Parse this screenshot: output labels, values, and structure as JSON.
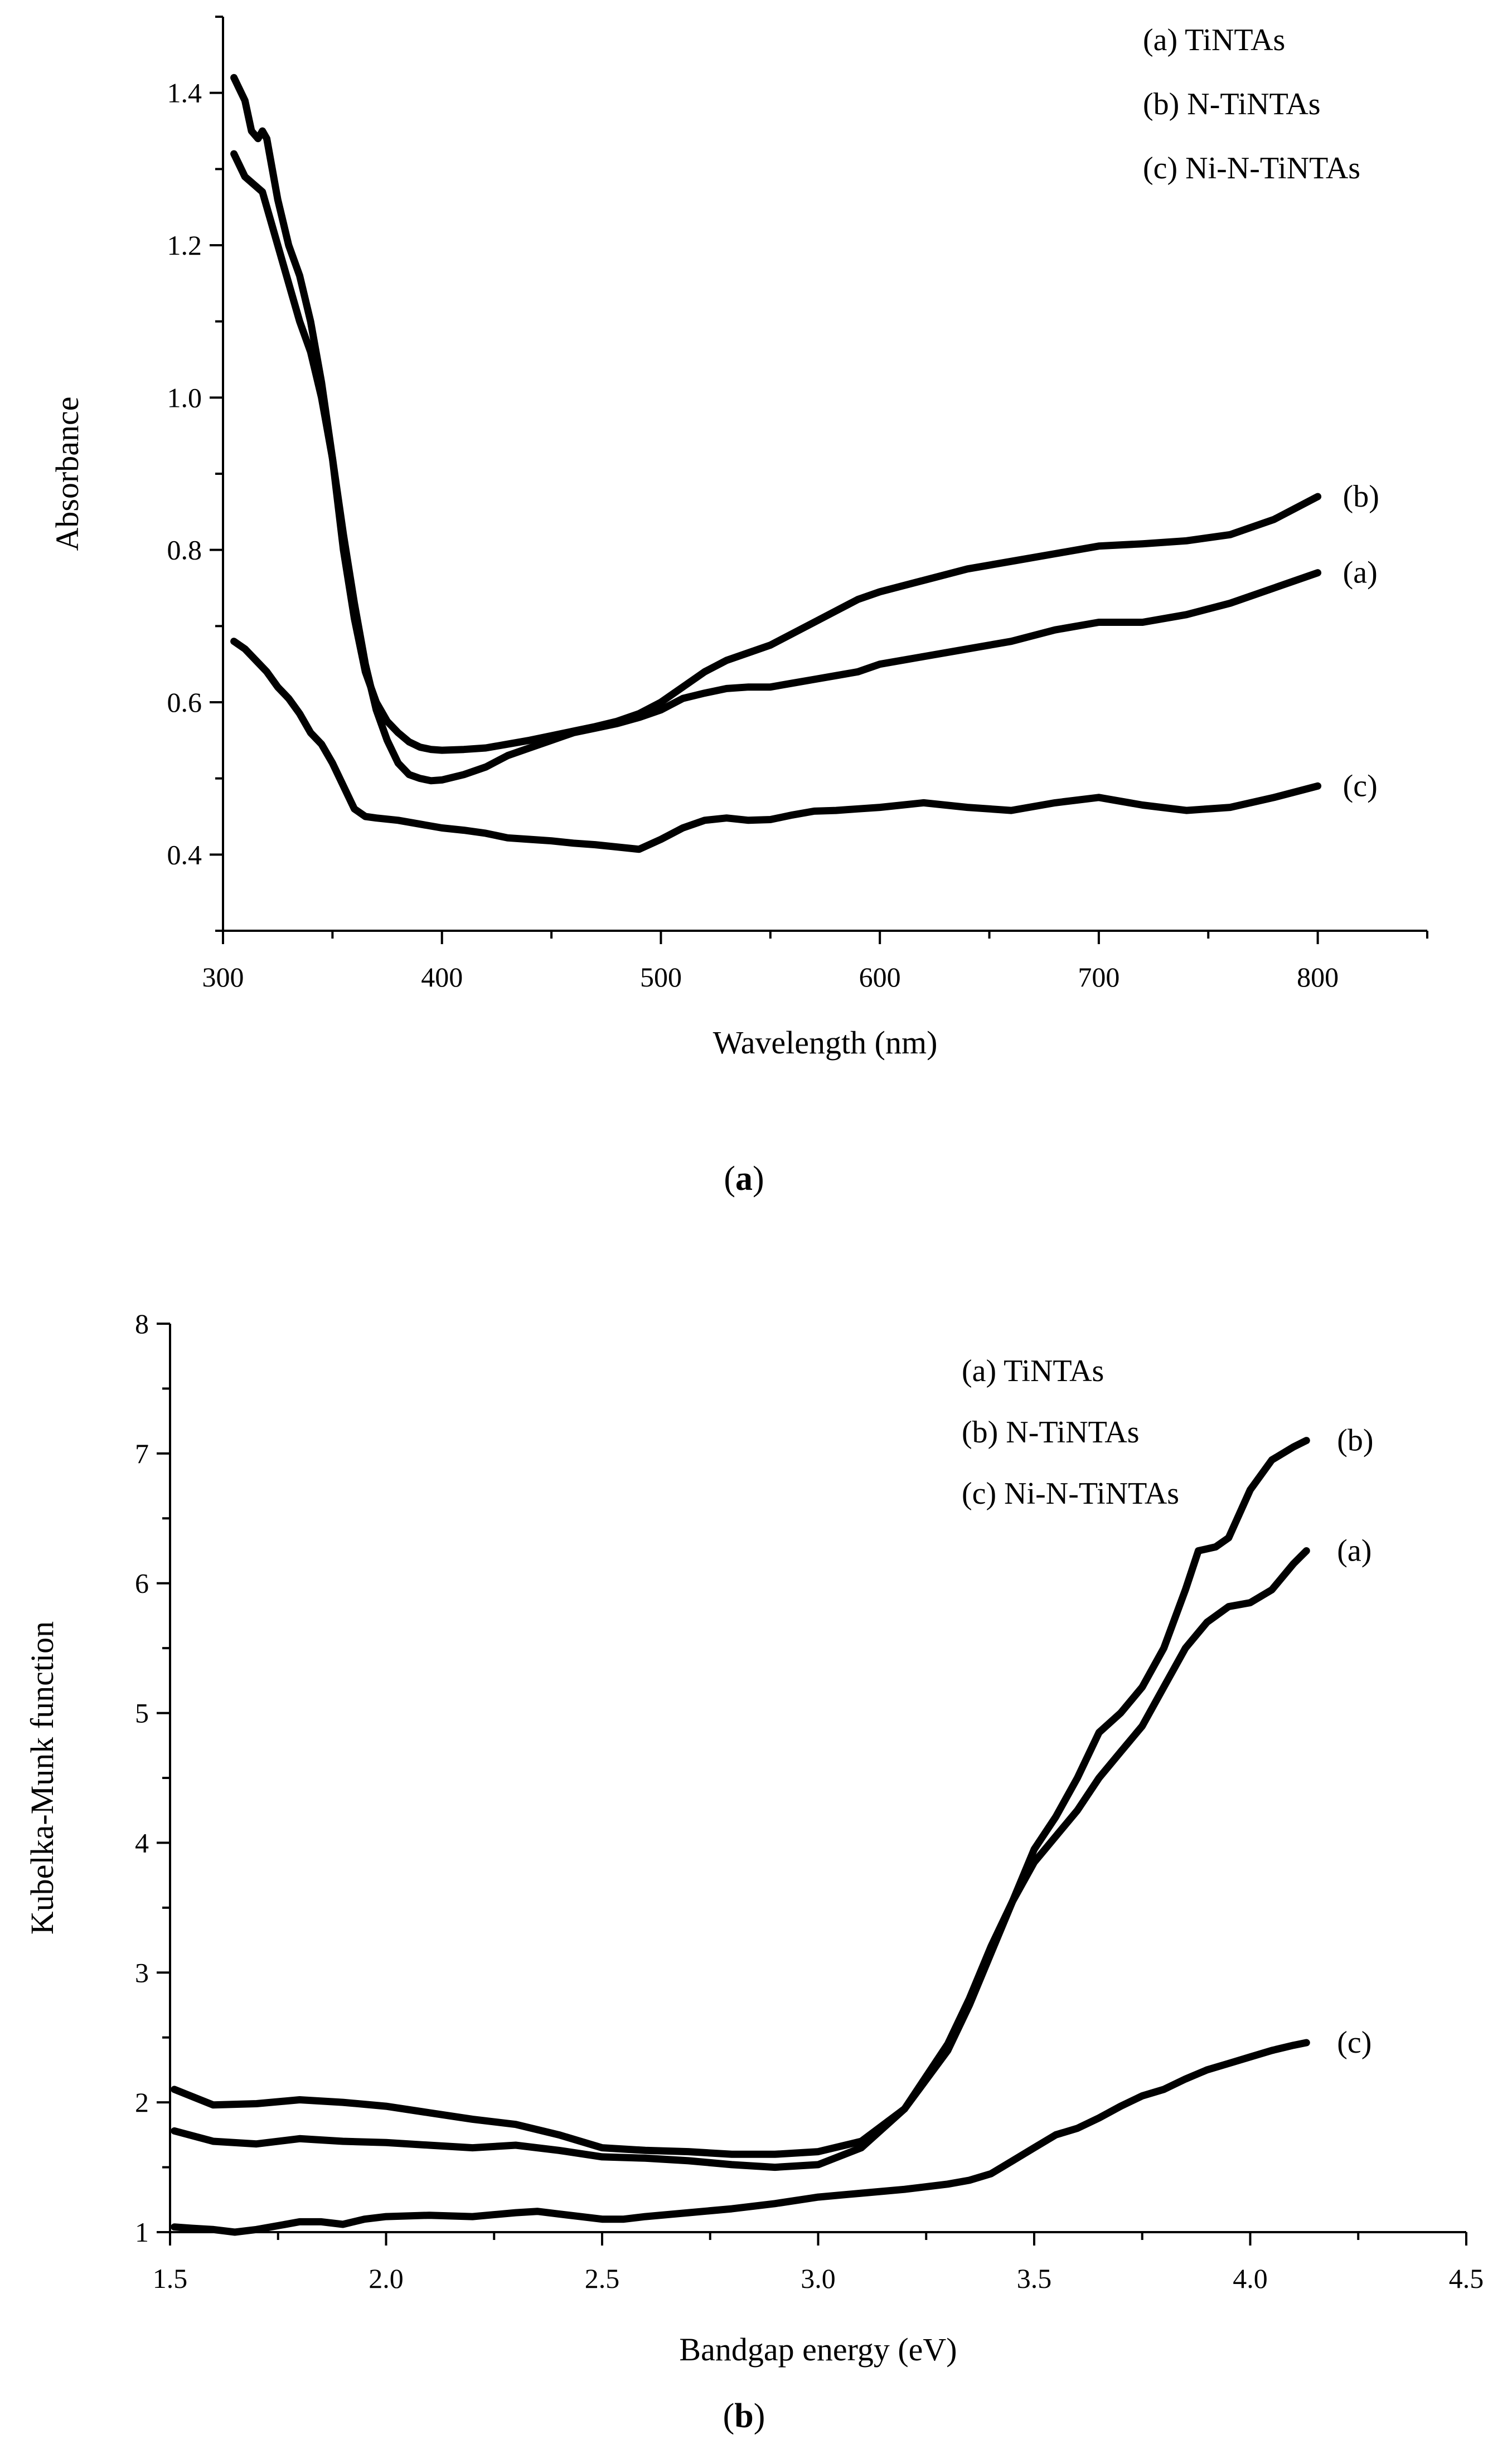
{
  "chart_data": [
    {
      "id": "a",
      "type": "line",
      "caption_letter": "a",
      "xlabel": "Wavelength (nm)",
      "ylabel": "Absorbance",
      "xlim": [
        300,
        850
      ],
      "ylim": [
        0.3,
        1.5
      ],
      "xticks": [
        300,
        400,
        500,
        600,
        700,
        800
      ],
      "yticks": [
        0.4,
        0.6,
        0.8,
        1.0,
        1.2,
        1.4
      ],
      "xtick_labels": [
        "300",
        "400",
        "500",
        "600",
        "700",
        "800"
      ],
      "ytick_labels": [
        "0.4",
        "0.6",
        "0.8",
        "1.0",
        "1.2",
        "1.4"
      ],
      "legend": [
        "(a) TiNTAs",
        "(b) N-TiNTAs",
        "(c) Ni-N-TiNTAs"
      ],
      "legend_position": "top-right",
      "series": [
        {
          "name": "(a) TiNTAs",
          "end_label": "(a)",
          "x": [
            305,
            310,
            318,
            325,
            330,
            335,
            340,
            345,
            350,
            355,
            360,
            365,
            370,
            375,
            380,
            385,
            390,
            395,
            400,
            410,
            420,
            430,
            440,
            450,
            460,
            470,
            480,
            490,
            500,
            510,
            520,
            530,
            540,
            550,
            560,
            570,
            580,
            590,
            600,
            620,
            640,
            660,
            680,
            700,
            720,
            740,
            760,
            780,
            800
          ],
          "y": [
            1.32,
            1.29,
            1.27,
            1.2,
            1.15,
            1.1,
            1.06,
            1.0,
            0.92,
            0.82,
            0.73,
            0.65,
            0.59,
            0.55,
            0.52,
            0.505,
            0.5,
            0.497,
            0.498,
            0.505,
            0.515,
            0.53,
            0.54,
            0.55,
            0.56,
            0.566,
            0.572,
            0.58,
            0.59,
            0.605,
            0.612,
            0.618,
            0.62,
            0.62,
            0.625,
            0.63,
            0.635,
            0.64,
            0.65,
            0.66,
            0.67,
            0.68,
            0.695,
            0.705,
            0.705,
            0.715,
            0.73,
            0.75,
            0.77
          ]
        },
        {
          "name": "(b) N-TiNTAs",
          "end_label": "(b)",
          "x": [
            305,
            310,
            313,
            316,
            318,
            320,
            325,
            330,
            335,
            340,
            345,
            350,
            355,
            360,
            365,
            370,
            375,
            380,
            385,
            390,
            395,
            400,
            410,
            420,
            430,
            440,
            450,
            460,
            470,
            480,
            490,
            500,
            510,
            520,
            530,
            540,
            550,
            560,
            570,
            580,
            590,
            600,
            620,
            640,
            660,
            680,
            700,
            720,
            740,
            760,
            780,
            800
          ],
          "y": [
            1.42,
            1.39,
            1.35,
            1.34,
            1.35,
            1.34,
            1.26,
            1.2,
            1.16,
            1.1,
            1.02,
            0.92,
            0.8,
            0.71,
            0.64,
            0.6,
            0.575,
            0.56,
            0.548,
            0.541,
            0.538,
            0.537,
            0.538,
            0.54,
            0.545,
            0.55,
            0.556,
            0.562,
            0.568,
            0.575,
            0.585,
            0.6,
            0.62,
            0.64,
            0.655,
            0.665,
            0.675,
            0.69,
            0.705,
            0.72,
            0.735,
            0.745,
            0.76,
            0.775,
            0.785,
            0.795,
            0.805,
            0.808,
            0.812,
            0.82,
            0.84,
            0.87
          ]
        },
        {
          "name": "(c) Ni-N-TiNTAs",
          "end_label": "(c)",
          "x": [
            305,
            310,
            315,
            320,
            325,
            330,
            335,
            340,
            345,
            350,
            355,
            360,
            365,
            370,
            380,
            390,
            400,
            410,
            420,
            430,
            440,
            450,
            460,
            470,
            480,
            490,
            500,
            510,
            520,
            530,
            540,
            550,
            560,
            570,
            580,
            590,
            600,
            620,
            640,
            660,
            680,
            700,
            720,
            740,
            760,
            780,
            800
          ],
          "y": [
            0.68,
            0.67,
            0.655,
            0.64,
            0.62,
            0.605,
            0.585,
            0.56,
            0.545,
            0.52,
            0.49,
            0.46,
            0.45,
            0.448,
            0.445,
            0.44,
            0.435,
            0.432,
            0.428,
            0.422,
            0.42,
            0.418,
            0.415,
            0.413,
            0.41,
            0.407,
            0.42,
            0.435,
            0.445,
            0.448,
            0.445,
            0.446,
            0.452,
            0.457,
            0.458,
            0.46,
            0.462,
            0.468,
            0.462,
            0.458,
            0.468,
            0.475,
            0.465,
            0.458,
            0.462,
            0.475,
            0.49
          ]
        }
      ]
    },
    {
      "id": "b",
      "type": "line",
      "caption_letter": "b",
      "xlabel": "Bandgap energy (eV)",
      "ylabel": "Kubelka-Munk function",
      "xlim": [
        1.5,
        4.5
      ],
      "ylim": [
        1,
        8
      ],
      "xticks": [
        1.5,
        2.0,
        2.5,
        3.0,
        3.5,
        4.0,
        4.5
      ],
      "yticks": [
        1,
        2,
        3,
        4,
        5,
        6,
        7,
        8
      ],
      "xtick_labels": [
        "1.5",
        "2.0",
        "2.5",
        "3.0",
        "3.5",
        "4.0",
        "4.5"
      ],
      "ytick_labels": [
        "1",
        "2",
        "3",
        "4",
        "5",
        "6",
        "7",
        "8"
      ],
      "legend": [
        "(a) TiNTAs",
        "(b) N-TiNTAs",
        "(c) Ni-N-TiNTAs"
      ],
      "legend_position": "top-right",
      "series": [
        {
          "name": "(a) TiNTAs",
          "end_label": "(a)",
          "x": [
            1.51,
            1.6,
            1.7,
            1.8,
            1.9,
            2.0,
            2.1,
            2.2,
            2.3,
            2.4,
            2.5,
            2.6,
            2.7,
            2.8,
            2.9,
            3.0,
            3.1,
            3.2,
            3.3,
            3.35,
            3.4,
            3.45,
            3.5,
            3.55,
            3.6,
            3.65,
            3.7,
            3.75,
            3.8,
            3.85,
            3.9,
            3.95,
            4.0,
            4.05,
            4.1,
            4.13
          ],
          "y": [
            1.78,
            1.7,
            1.68,
            1.72,
            1.7,
            1.69,
            1.67,
            1.65,
            1.67,
            1.63,
            1.58,
            1.57,
            1.55,
            1.52,
            1.5,
            1.52,
            1.65,
            1.95,
            2.45,
            2.8,
            3.2,
            3.55,
            3.85,
            4.05,
            4.25,
            4.5,
            4.7,
            4.9,
            5.2,
            5.5,
            5.7,
            5.82,
            5.85,
            5.95,
            6.15,
            6.25
          ]
        },
        {
          "name": "(b) N-TiNTAs",
          "end_label": "(b)",
          "x": [
            1.51,
            1.6,
            1.7,
            1.8,
            1.9,
            2.0,
            2.1,
            2.2,
            2.3,
            2.4,
            2.5,
            2.6,
            2.7,
            2.8,
            2.9,
            3.0,
            3.1,
            3.2,
            3.3,
            3.35,
            3.4,
            3.45,
            3.5,
            3.55,
            3.6,
            3.65,
            3.7,
            3.75,
            3.8,
            3.85,
            3.88,
            3.92,
            3.95,
            4.0,
            4.05,
            4.1,
            4.13
          ],
          "y": [
            2.1,
            1.98,
            1.99,
            2.02,
            2.0,
            1.97,
            1.92,
            1.87,
            1.83,
            1.75,
            1.65,
            1.63,
            1.62,
            1.6,
            1.6,
            1.62,
            1.7,
            1.95,
            2.4,
            2.75,
            3.15,
            3.55,
            3.95,
            4.2,
            4.5,
            4.85,
            5.0,
            5.2,
            5.5,
            5.95,
            6.25,
            6.28,
            6.35,
            6.72,
            6.95,
            7.05,
            7.1
          ]
        },
        {
          "name": "(c) Ni-N-TiNTAs",
          "end_label": "(c)",
          "x": [
            1.51,
            1.55,
            1.6,
            1.65,
            1.7,
            1.75,
            1.8,
            1.85,
            1.9,
            1.95,
            2.0,
            2.1,
            2.2,
            2.3,
            2.35,
            2.4,
            2.45,
            2.5,
            2.55,
            2.6,
            2.7,
            2.8,
            2.9,
            3.0,
            3.1,
            3.2,
            3.3,
            3.35,
            3.4,
            3.45,
            3.5,
            3.55,
            3.6,
            3.65,
            3.7,
            3.75,
            3.8,
            3.85,
            3.9,
            3.95,
            4.0,
            4.05,
            4.1,
            4.13
          ],
          "y": [
            1.04,
            1.03,
            1.02,
            1.0,
            1.02,
            1.05,
            1.08,
            1.08,
            1.06,
            1.1,
            1.12,
            1.13,
            1.12,
            1.15,
            1.16,
            1.14,
            1.12,
            1.1,
            1.1,
            1.12,
            1.15,
            1.18,
            1.22,
            1.27,
            1.3,
            1.33,
            1.37,
            1.4,
            1.45,
            1.55,
            1.65,
            1.75,
            1.8,
            1.88,
            1.97,
            2.05,
            2.1,
            2.18,
            2.25,
            2.3,
            2.35,
            2.4,
            2.44,
            2.46
          ]
        }
      ]
    }
  ]
}
